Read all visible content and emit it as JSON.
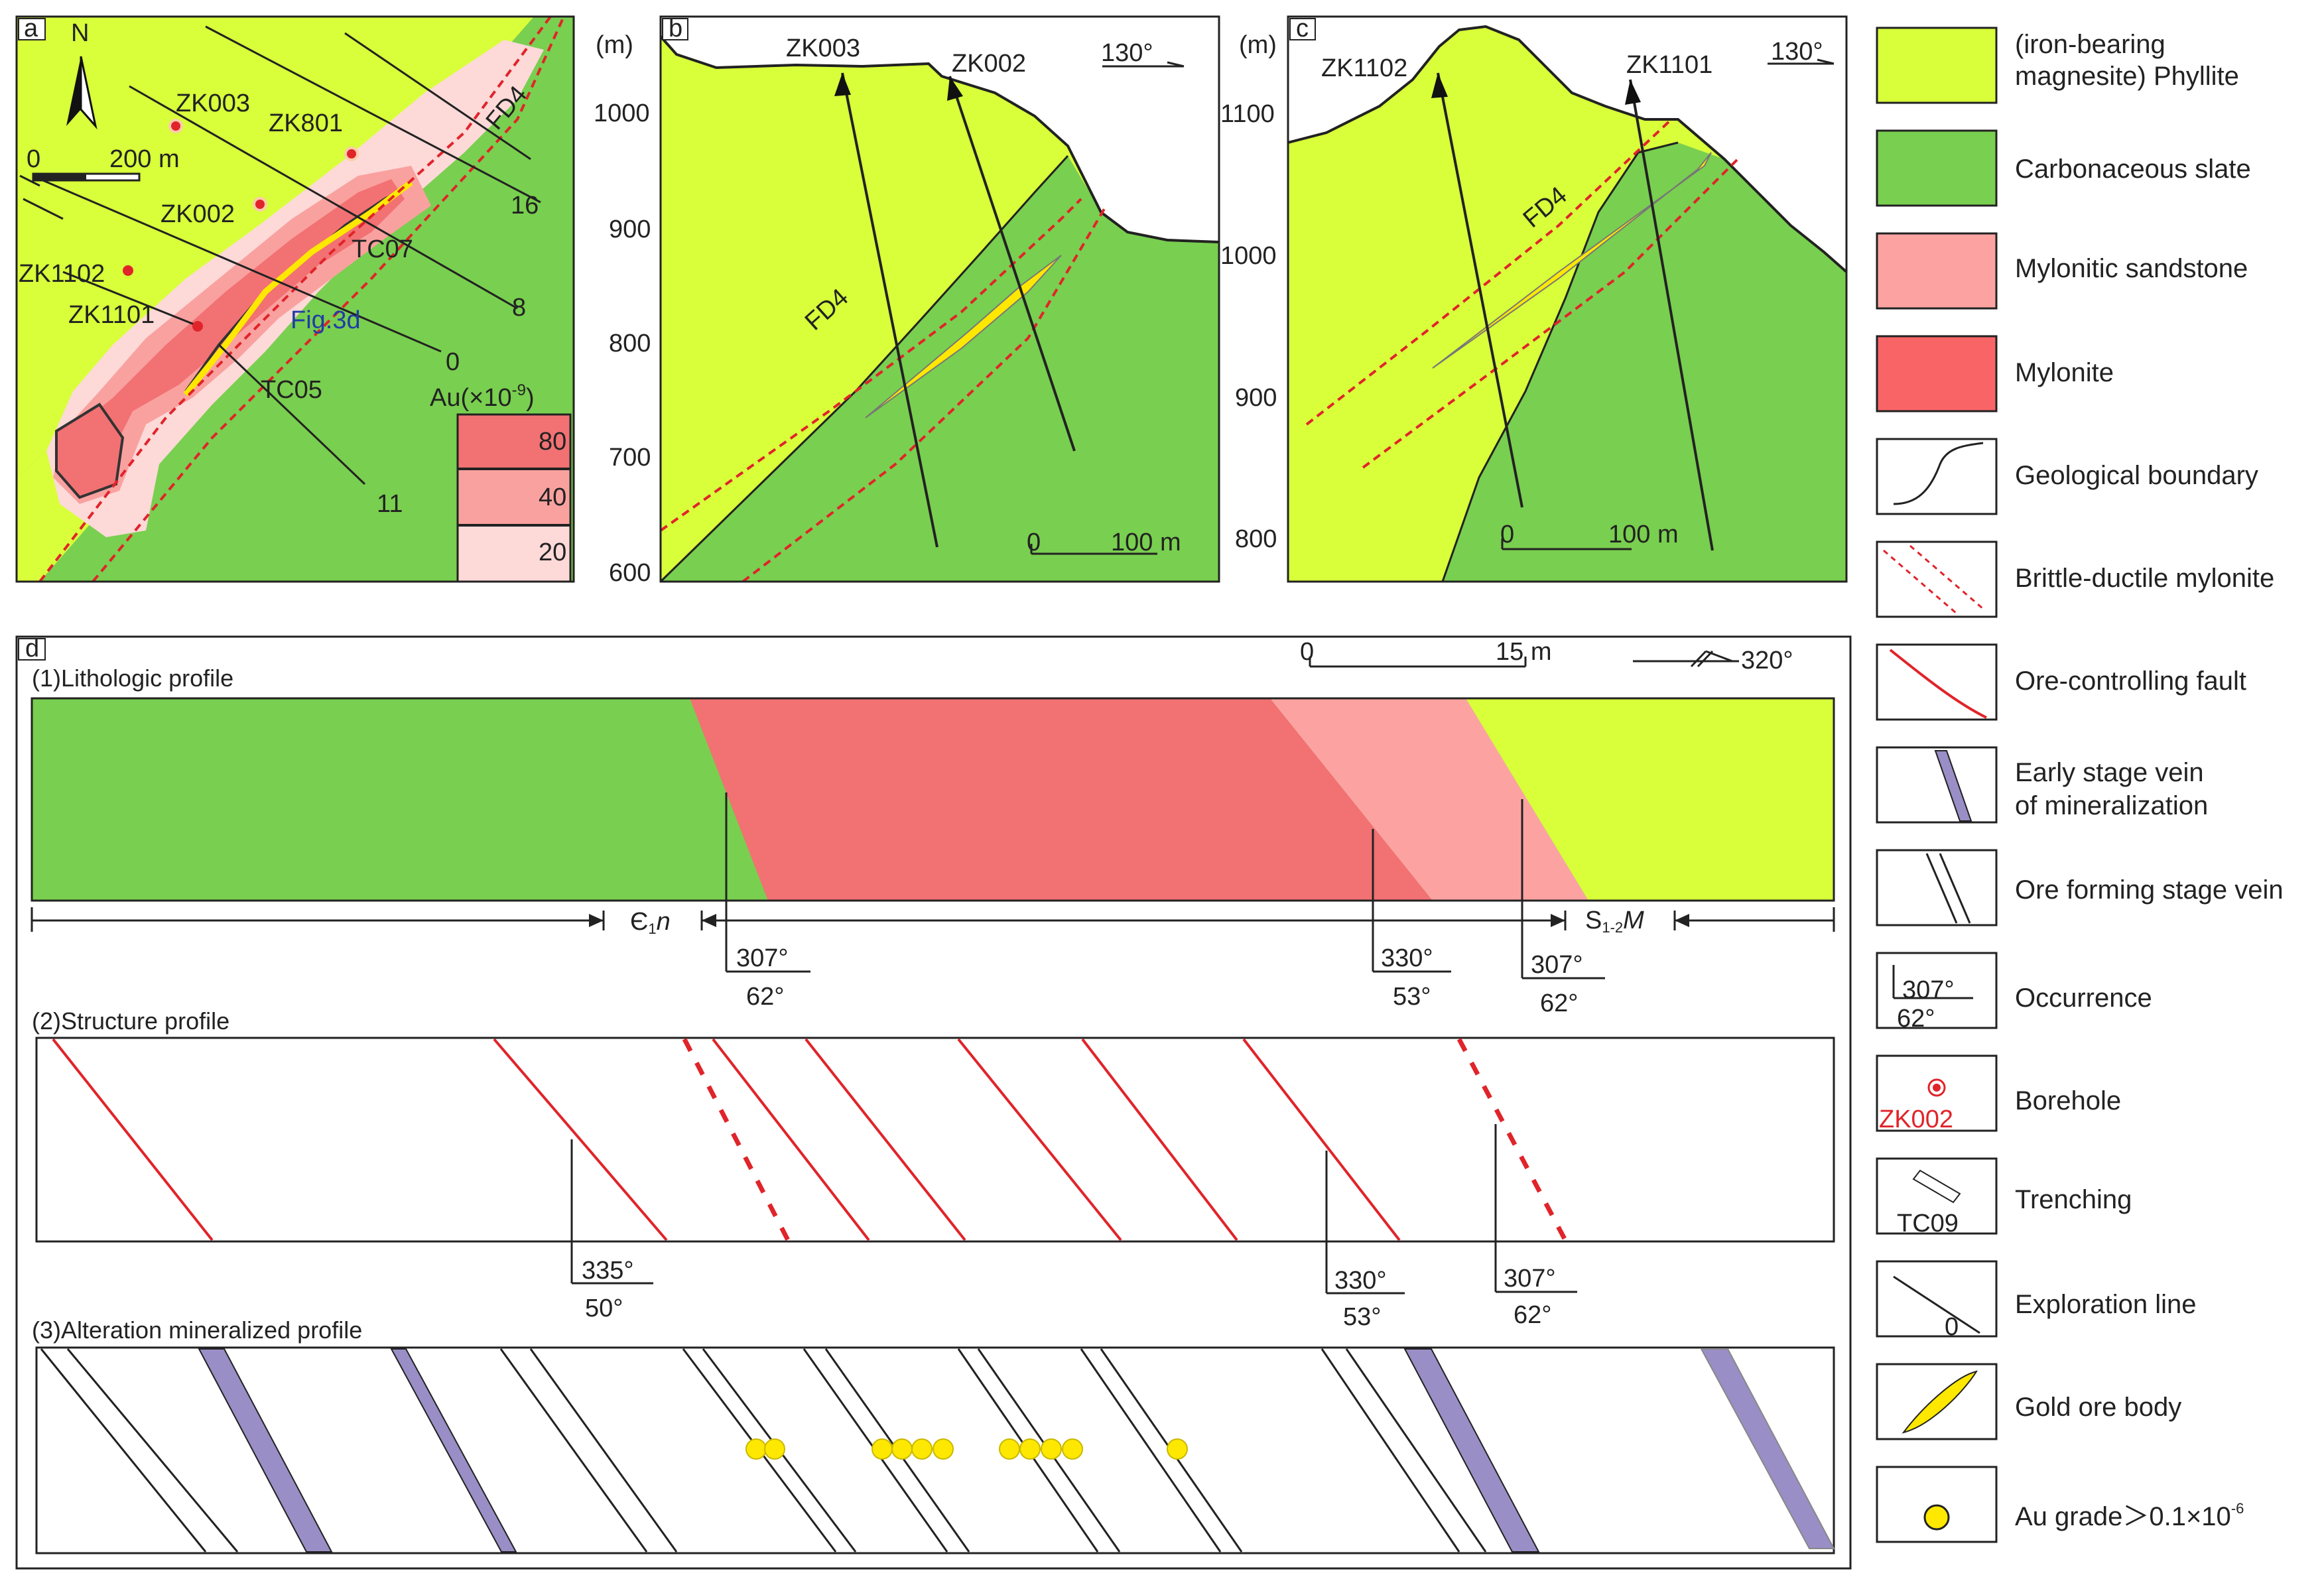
{
  "panels": {
    "a": "a",
    "b": "b",
    "c": "c",
    "d": "d"
  },
  "map_a": {
    "north": "N",
    "scale": [
      "0",
      "200 m"
    ],
    "fault": "FD4",
    "figref": "Fig.3d",
    "boreholes": [
      "ZK003",
      "ZK801",
      "ZK002",
      "ZK1102",
      "ZK1101"
    ],
    "trenches": [
      "TC07",
      "TC05"
    ],
    "lines": [
      "16",
      "8",
      "0",
      "11"
    ],
    "au_title": "Au(×10",
    "au_exp": "-9",
    "au_close": ")",
    "au_levels": [
      "80",
      "40",
      "20"
    ],
    "colors": {
      "phyllite": "#d8ff3a",
      "slate": "#79cf4f",
      "sandstone": "#fdd9d8",
      "mylonite_mid": "#f9a19f",
      "mylonite_high": "#f27173",
      "fault": "#e0242a",
      "ore": "#ffe800"
    }
  },
  "section_b": {
    "unit": "(m)",
    "yticks": [
      "1000",
      "900",
      "800",
      "700",
      "600"
    ],
    "holes": [
      "ZK003",
      "ZK002"
    ],
    "azimuth": "130°",
    "fault": "FD4",
    "scale": [
      "0",
      "100 m"
    ]
  },
  "section_c": {
    "unit": "(m)",
    "yticks": [
      "1100",
      "1000",
      "900",
      "800"
    ],
    "holes": [
      "ZK1102",
      "ZK1101"
    ],
    "azimuth": "130°",
    "fault": "FD4",
    "scale": [
      "0",
      "100 m"
    ]
  },
  "profile_d": {
    "scale": [
      "0",
      "15 m"
    ],
    "azimuth": "320°",
    "p1": "(1)Lithologic profile",
    "p2": "(2)Structure profile",
    "p3": "(3)Alteration mineralized profile",
    "unit_left": "Є",
    "unit_left_sub": "1",
    "unit_left_n": "n",
    "unit_right": "S",
    "unit_right_sub": "1-2",
    "unit_right_m": "M",
    "occ1": [
      {
        "az": "307°",
        "dip": "62°"
      },
      {
        "az": "330°",
        "dip": "53°"
      },
      {
        "az": "307°",
        "dip": "62°"
      }
    ],
    "occ2": [
      {
        "az": "335°",
        "dip": "50°"
      },
      {
        "az": "330°",
        "dip": "53°"
      },
      {
        "az": "307°",
        "dip": "62°"
      }
    ]
  },
  "legend": {
    "items": [
      {
        "l1": " (iron-bearing",
        "l2": "magnesite) Phyllite"
      },
      {
        "l1": "Carbonaceous slate"
      },
      {
        "l1": "Mylonitic sandstone"
      },
      {
        "l1": "Mylonite"
      },
      {
        "l1": "Geological boundary"
      },
      {
        "l1": "Brittle-ductile mylonite"
      },
      {
        "l1": "Ore-controlling fault"
      },
      {
        "l1": "Early stage vein",
        "l2": " of mineralization"
      },
      {
        "l1": "Ore forming stage vein"
      },
      {
        "l1": "Occurrence"
      },
      {
        "l1": "Borehole"
      },
      {
        "l1": "Trenching"
      },
      {
        "l1": "Exploration  line"
      },
      {
        "l1": "Gold ore body"
      },
      {
        "l1": "Au grade＞0.1×10",
        "sup": "-6"
      }
    ],
    "occ_az": "307°",
    "occ_dip": "62°",
    "borehole_code": "ZK002",
    "trench_code": "TC09",
    "line_code": "0",
    "colors": {
      "vein_early": "#9a8ec6"
    }
  }
}
